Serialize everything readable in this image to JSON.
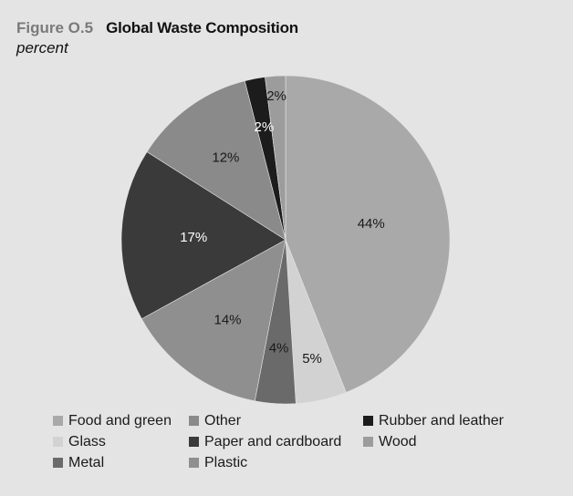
{
  "header": {
    "figure_label": "Figure O.5",
    "title": "Global Waste Composition",
    "subtitle": "percent"
  },
  "chart_data": {
    "type": "pie",
    "title": "Global Waste Composition",
    "subtitle": "percent",
    "slices": [
      {
        "name": "Food and green",
        "value": 44,
        "label": "44%",
        "color": "#a9a9a9",
        "label_color": "#1a1a1a"
      },
      {
        "name": "Glass",
        "value": 5,
        "label": "5%",
        "color": "#d2d2d2",
        "label_color": "#1a1a1a"
      },
      {
        "name": "Metal",
        "value": 4,
        "label": "4%",
        "color": "#6a6a6a",
        "label_color": "#1a1a1a"
      },
      {
        "name": "Plastic",
        "value": 14,
        "label": "14%",
        "color": "#8f8f8f",
        "label_color": "#1a1a1a"
      },
      {
        "name": "Paper and cardboard",
        "value": 17,
        "label": "17%",
        "color": "#3a3a3a",
        "label_color": "#ffffff"
      },
      {
        "name": "Other",
        "value": 12,
        "label": "12%",
        "color": "#8a8a8a",
        "label_color": "#1a1a1a"
      },
      {
        "name": "Rubber and leather",
        "value": 2,
        "label": "2%",
        "color": "#1c1c1c",
        "label_color": "#ffffff"
      },
      {
        "name": "Wood",
        "value": 2,
        "label": "2%",
        "color": "#9c9c9c",
        "label_color": "#1a1a1a"
      }
    ],
    "legend": {
      "placement": "bottom",
      "entries": [
        "Food and green",
        "Other",
        "Rubber and leather",
        "Glass",
        "Paper and cardboard",
        "Wood",
        "Metal",
        "Plastic"
      ]
    }
  }
}
